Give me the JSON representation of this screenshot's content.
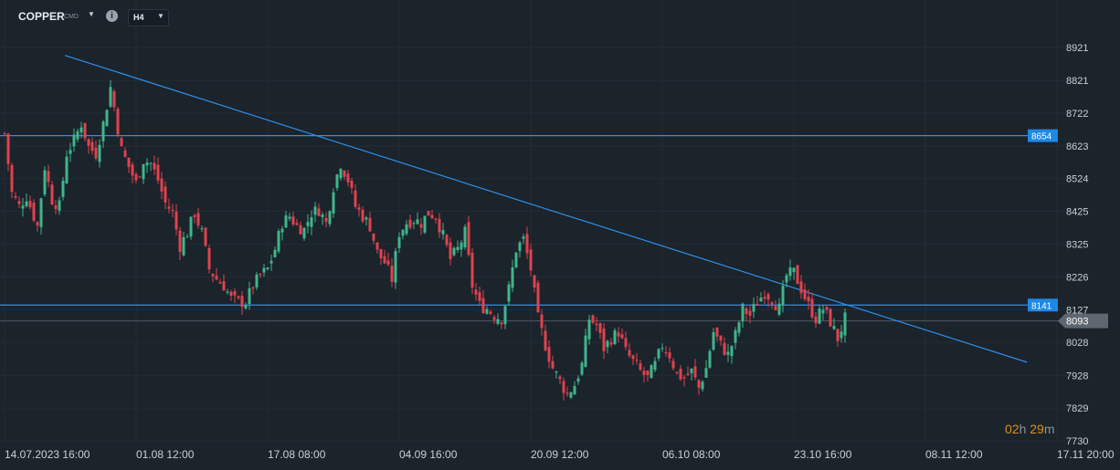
{
  "toolbar": {
    "symbol": "COPPER",
    "symbol_type": "CMD",
    "timeframe": "H4"
  },
  "countdown": {
    "hours": "02",
    "hours_unit": "h",
    "minutes": "29",
    "minutes_unit": "m"
  },
  "colors": {
    "background": "#1b232b",
    "grid": "#232c35",
    "bull": "#3fb68b",
    "bear": "#e0424f",
    "line": "#2f8fe8",
    "label_bg": "#1e88e5",
    "price_badge": "#5e6670",
    "countdown": "#e0901f"
  },
  "chart_data": {
    "type": "candlestick",
    "y_axis": {
      "ticks": [
        8921,
        8821,
        8722,
        8623,
        8524,
        8425,
        8325,
        8226,
        8127,
        8028,
        7928,
        7829,
        7730
      ],
      "range": [
        7730,
        8921
      ]
    },
    "x_axis": {
      "ticks": [
        "14.07.2023  16:00",
        "01.08  12:00",
        "17.08  08:00",
        "04.09  16:00",
        "20.09  12:00",
        "06.10  08:00",
        "23.10  16:00",
        "08.11  12:00",
        "17.11  20:00"
      ]
    },
    "current_price": "8093",
    "horizontal_lines": [
      {
        "label": "8654",
        "value": 8654
      },
      {
        "label": "8141",
        "value": 8141
      }
    ],
    "trendline": {
      "from": {
        "x": "2023-07-22",
        "y": 8897
      },
      "to": {
        "x": "2023-11-16",
        "y": 7968
      }
    },
    "close_path": [
      [
        0,
        8660
      ],
      [
        2,
        8480
      ],
      [
        4,
        8440
      ],
      [
        6,
        8470
      ],
      [
        8,
        8410
      ],
      [
        9,
        8380
      ],
      [
        11,
        8560
      ],
      [
        13,
        8460
      ],
      [
        15,
        8440
      ],
      [
        17,
        8600
      ],
      [
        19,
        8640
      ],
      [
        21,
        8690
      ],
      [
        23,
        8620
      ],
      [
        25,
        8600
      ],
      [
        27,
        8690
      ],
      [
        29,
        8800
      ],
      [
        30,
        8740
      ],
      [
        32,
        8610
      ],
      [
        34,
        8560
      ],
      [
        36,
        8510
      ],
      [
        38,
        8580
      ],
      [
        40,
        8570
      ],
      [
        42,
        8520
      ],
      [
        44,
        8450
      ],
      [
        46,
        8420
      ],
      [
        48,
        8320
      ],
      [
        50,
        8360
      ],
      [
        52,
        8420
      ],
      [
        54,
        8360
      ],
      [
        56,
        8250
      ],
      [
        58,
        8220
      ],
      [
        60,
        8200
      ],
      [
        62,
        8160
      ],
      [
        64,
        8150
      ],
      [
        66,
        8150
      ],
      [
        68,
        8200
      ],
      [
        70,
        8230
      ],
      [
        72,
        8250
      ],
      [
        74,
        8310
      ],
      [
        76,
        8390
      ],
      [
        78,
        8410
      ],
      [
        80,
        8380
      ],
      [
        82,
        8370
      ],
      [
        84,
        8420
      ],
      [
        86,
        8430
      ],
      [
        88,
        8390
      ],
      [
        90,
        8500
      ],
      [
        92,
        8570
      ],
      [
        94,
        8520
      ],
      [
        96,
        8440
      ],
      [
        98,
        8410
      ],
      [
        100,
        8380
      ],
      [
        102,
        8300
      ],
      [
        104,
        8270
      ],
      [
        106,
        8220
      ],
      [
        108,
        8360
      ],
      [
        110,
        8390
      ],
      [
        112,
        8400
      ],
      [
        114,
        8390
      ],
      [
        116,
        8420
      ],
      [
        118,
        8410
      ],
      [
        120,
        8350
      ],
      [
        122,
        8280
      ],
      [
        124,
        8310
      ],
      [
        126,
        8360
      ],
      [
        128,
        8200
      ],
      [
        130,
        8140
      ],
      [
        132,
        8130
      ],
      [
        134,
        8110
      ],
      [
        136,
        8100
      ],
      [
        138,
        8190
      ],
      [
        140,
        8310
      ],
      [
        142,
        8340
      ],
      [
        144,
        8250
      ],
      [
        146,
        8100
      ],
      [
        148,
        8020
      ],
      [
        150,
        7950
      ],
      [
        152,
        7910
      ],
      [
        154,
        7870
      ],
      [
        156,
        7900
      ],
      [
        158,
        7960
      ],
      [
        160,
        8100
      ],
      [
        162,
        8080
      ],
      [
        164,
        8010
      ],
      [
        166,
        8040
      ],
      [
        168,
        8060
      ],
      [
        170,
        8000
      ],
      [
        172,
        7970
      ],
      [
        174,
        7940
      ],
      [
        176,
        7920
      ],
      [
        178,
        7960
      ],
      [
        180,
        8020
      ],
      [
        182,
        7990
      ],
      [
        184,
        7930
      ],
      [
        186,
        7920
      ],
      [
        188,
        7940
      ],
      [
        190,
        7890
      ],
      [
        192,
        7950
      ],
      [
        194,
        8060
      ],
      [
        196,
        8020
      ],
      [
        198,
        7990
      ],
      [
        200,
        8050
      ],
      [
        202,
        8130
      ],
      [
        204,
        8110
      ],
      [
        206,
        8150
      ],
      [
        208,
        8180
      ],
      [
        210,
        8160
      ],
      [
        212,
        8130
      ],
      [
        214,
        8230
      ],
      [
        216,
        8240
      ],
      [
        218,
        8190
      ],
      [
        220,
        8140
      ],
      [
        222,
        8100
      ],
      [
        224,
        8130
      ],
      [
        226,
        8090
      ],
      [
        228,
        8040
      ],
      [
        230,
        8100
      ]
    ]
  }
}
